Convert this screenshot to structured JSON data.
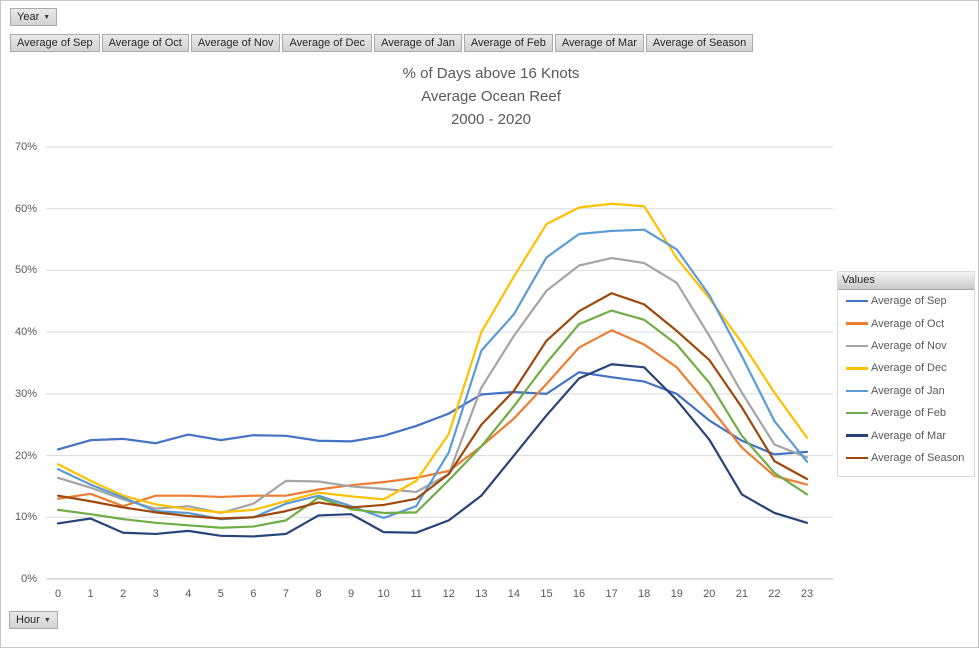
{
  "filters": {
    "year_button_label": "Year",
    "hour_button_label": "Hour",
    "series_buttons": [
      "Average of Sep",
      "Average of Oct",
      "Average of Nov",
      "Average of Dec",
      "Average of Jan",
      "Average of Feb",
      "Average of Mar",
      "Average of Season"
    ]
  },
  "title": {
    "line1": "% of Days above 16 Knots",
    "line2": "Average Ocean Reef",
    "line3": "2000 - 2020"
  },
  "legend": {
    "header": "Values",
    "position": "right"
  },
  "chart_data": {
    "type": "line",
    "title": "% of Days above 16 Knots Average Ocean Reef 2000 - 2020",
    "xlabel": "Hour",
    "ylabel": "",
    "x": [
      0,
      1,
      2,
      3,
      4,
      5,
      6,
      7,
      8,
      9,
      10,
      11,
      12,
      13,
      14,
      15,
      16,
      17,
      18,
      19,
      20,
      21,
      22,
      23
    ],
    "yticks": [
      "0%",
      "10%",
      "20%",
      "30%",
      "40%",
      "50%",
      "60%",
      "70%"
    ],
    "ylim": [
      0,
      70
    ],
    "grid": true,
    "legend_position": "right",
    "series": [
      {
        "name": "Average of Sep",
        "color": "#4472C4",
        "values": [
          21.0,
          22.5,
          22.7,
          22.0,
          23.4,
          22.5,
          23.3,
          23.2,
          22.4,
          22.3,
          23.2,
          24.8,
          26.8,
          29.9,
          30.3,
          30.0,
          33.5,
          32.7,
          32.0,
          30.0,
          25.7,
          22.4,
          20.2,
          20.6
        ]
      },
      {
        "name": "Average of Oct",
        "color": "#ED7D31",
        "values": [
          13.0,
          13.8,
          11.8,
          13.5,
          13.5,
          13.3,
          13.5,
          13.5,
          14.5,
          15.2,
          15.7,
          16.4,
          17.5,
          21.5,
          26.0,
          31.6,
          37.5,
          40.3,
          38.0,
          34.3,
          28.0,
          21.3,
          16.7,
          15.3
        ]
      },
      {
        "name": "Average of Nov",
        "color": "#A5A5A5",
        "values": [
          16.4,
          14.8,
          12.9,
          11.4,
          11.8,
          10.7,
          12.2,
          15.9,
          15.8,
          15.0,
          14.6,
          14.1,
          17.0,
          31.0,
          39.4,
          46.7,
          50.8,
          52.0,
          51.2,
          48.0,
          39.4,
          30.2,
          21.8,
          19.7
        ]
      },
      {
        "name": "Average of Dec",
        "color": "#FFC000",
        "values": [
          18.6,
          15.9,
          13.5,
          12.1,
          11.3,
          10.8,
          11.2,
          12.6,
          14.0,
          13.4,
          12.9,
          15.9,
          23.5,
          40.0,
          49.0,
          57.5,
          60.2,
          60.8,
          60.4,
          52.0,
          45.5,
          38.3,
          30.2,
          22.9
        ]
      },
      {
        "name": "Average of Jan",
        "color": "#5B9BD5",
        "values": [
          17.8,
          15.3,
          13.2,
          11.0,
          10.7,
          9.7,
          10.0,
          12.2,
          13.5,
          11.8,
          9.9,
          11.8,
          20.5,
          37.0,
          42.9,
          52.1,
          55.9,
          56.4,
          56.6,
          53.4,
          46.0,
          36.1,
          25.6,
          19.0
        ]
      },
      {
        "name": "Average of Feb",
        "color": "#70AD47",
        "values": [
          11.2,
          10.5,
          9.7,
          9.1,
          8.7,
          8.3,
          8.5,
          9.5,
          13.2,
          11.3,
          10.7,
          10.8,
          16.0,
          21.5,
          28.0,
          35.0,
          41.3,
          43.5,
          42.0,
          38.0,
          31.8,
          23.2,
          17.2,
          13.7
        ]
      },
      {
        "name": "Average of Mar",
        "color": "#264478",
        "values": [
          9.0,
          9.8,
          7.5,
          7.3,
          7.8,
          7.0,
          6.9,
          7.3,
          10.3,
          10.5,
          7.6,
          7.5,
          9.5,
          13.5,
          20.0,
          26.5,
          32.5,
          34.8,
          34.3,
          29.0,
          22.6,
          13.7,
          10.7,
          9.1
        ]
      },
      {
        "name": "Average of Season",
        "color": "#9E480E",
        "values": [
          13.5,
          12.6,
          11.6,
          10.8,
          10.2,
          9.8,
          10.0,
          11.0,
          12.4,
          11.6,
          12.0,
          13.0,
          17.0,
          25.0,
          30.5,
          38.6,
          43.4,
          46.3,
          44.5,
          40.2,
          35.5,
          27.8,
          19.1,
          16.2
        ]
      }
    ]
  }
}
